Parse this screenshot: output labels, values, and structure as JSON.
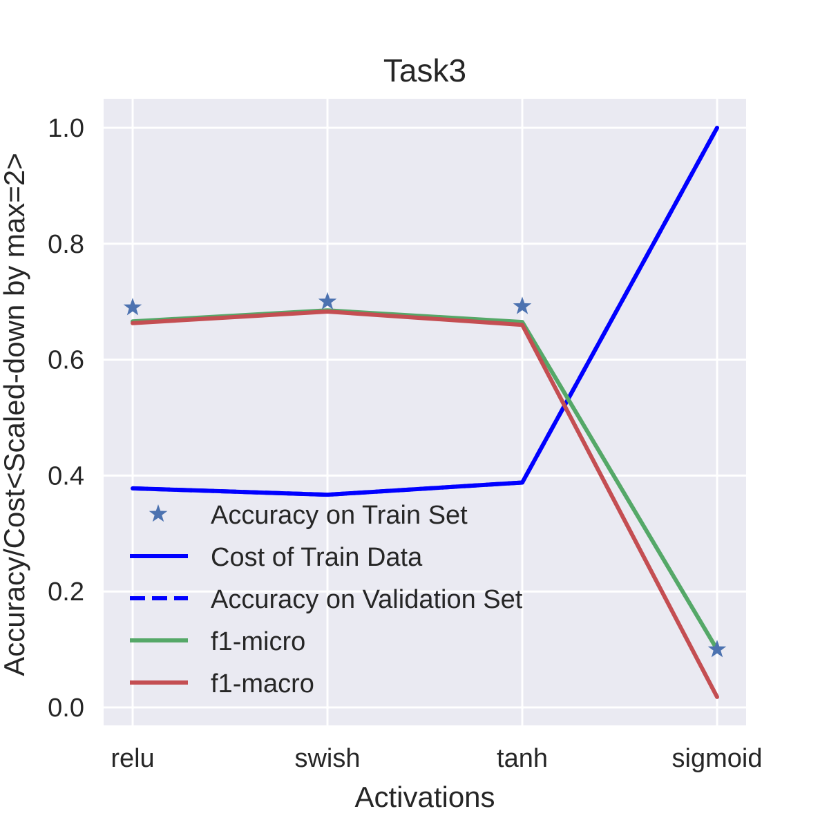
{
  "chart_data": {
    "type": "line",
    "title": "Task3",
    "xlabel": "Activations",
    "ylabel": "Accuracy/Cost<Scaled-down by max=2>",
    "categories": [
      "relu",
      "swish",
      "tanh",
      "sigmoid"
    ],
    "ylim": [
      -0.03,
      1.05
    ],
    "yticks": [
      0.0,
      0.2,
      0.4,
      0.6,
      0.8,
      1.0
    ],
    "ytick_labels": [
      "0.0",
      "0.2",
      "0.4",
      "0.6",
      "0.8",
      "1.0"
    ],
    "grid": true,
    "legend_position": "lower-left",
    "series": [
      {
        "name": "Accuracy on Train Set",
        "style": "star-marker",
        "color": "#4c72b0",
        "values": [
          0.69,
          0.7,
          0.692,
          0.1
        ]
      },
      {
        "name": "Cost of Train Data",
        "style": "solid",
        "color": "#0000ff",
        "values": [
          0.378,
          0.367,
          0.388,
          1.0
        ]
      },
      {
        "name": "Accuracy on Validation Set",
        "style": "dashed",
        "color": "#0000ff",
        "values": [
          0.378,
          0.367,
          0.388,
          1.0
        ]
      },
      {
        "name": "f1-micro",
        "style": "solid",
        "color": "#55a868",
        "values": [
          0.666,
          0.685,
          0.665,
          0.1
        ]
      },
      {
        "name": "f1-macro",
        "style": "solid",
        "color": "#c44e52",
        "values": [
          0.663,
          0.683,
          0.66,
          0.018
        ]
      }
    ],
    "background_color": "#eaeaf2",
    "grid_color": "#ffffff"
  }
}
